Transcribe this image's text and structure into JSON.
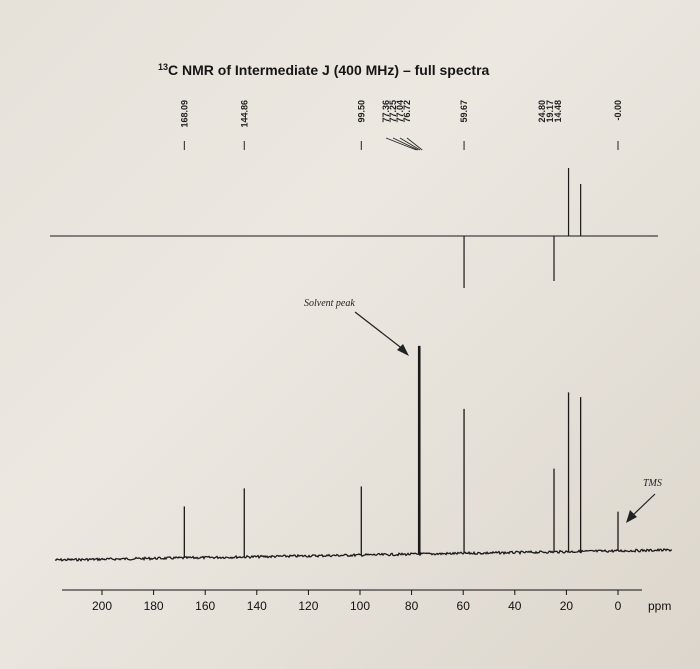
{
  "chart_data": {
    "type": "line",
    "title_prefix": "13",
    "title": "C NMR of Intermediate J (400 MHz) – full spectra",
    "xlabel": "ppm",
    "xlim": [
      200,
      0
    ],
    "x_ticks": [
      {
        "value": 200,
        "label": "200"
      },
      {
        "value": 180,
        "label": "180"
      },
      {
        "value": 160,
        "label": "160"
      },
      {
        "value": 140,
        "label": "140"
      },
      {
        "value": 120,
        "label": "120"
      },
      {
        "value": 100,
        "label": "100"
      },
      {
        "value": 80,
        "label": "80"
      },
      {
        "value": 60,
        "label": "60"
      },
      {
        "value": 40,
        "label": "40"
      },
      {
        "value": 20,
        "label": "20"
      },
      {
        "value": 0,
        "label": "0"
      }
    ],
    "peak_labels": [
      {
        "label": "168.09",
        "ppm": 168.09
      },
      {
        "label": "144.86",
        "ppm": 144.86
      },
      {
        "label": "99.50",
        "ppm": 99.5
      },
      {
        "label": "77.36",
        "ppm": 77.36
      },
      {
        "label": "77.25",
        "ppm": 77.25
      },
      {
        "label": "77.04",
        "ppm": 77.04
      },
      {
        "label": "76.72",
        "ppm": 76.72
      },
      {
        "label": "59.67",
        "ppm": 59.67
      },
      {
        "label": "24.80",
        "ppm": 24.8
      },
      {
        "label": "19.17",
        "ppm": 19.17
      },
      {
        "label": "14.48",
        "ppm": 14.48
      },
      {
        "label": "-0.00",
        "ppm": 0.0
      }
    ],
    "dept_peaks": [
      {
        "ppm": 59.67,
        "intensity": -0.52
      },
      {
        "ppm": 24.8,
        "intensity": -0.45
      },
      {
        "ppm": 19.17,
        "intensity": 0.68
      },
      {
        "ppm": 14.48,
        "intensity": 0.52
      }
    ],
    "c13_peaks": [
      {
        "ppm": 168.09,
        "intensity": 0.21
      },
      {
        "ppm": 144.86,
        "intensity": 0.28
      },
      {
        "ppm": 99.5,
        "intensity": 0.28
      },
      {
        "ppm": 77.04,
        "intensity": 0.85
      },
      {
        "ppm": 59.67,
        "intensity": 0.59
      },
      {
        "ppm": 24.8,
        "intensity": 0.34
      },
      {
        "ppm": 19.17,
        "intensity": 0.65
      },
      {
        "ppm": 14.48,
        "intensity": 0.63
      },
      {
        "ppm": 0.0,
        "intensity": 0.16
      }
    ],
    "annotations": {
      "solvent": "Solvent peak",
      "tms": "TMS"
    }
  }
}
